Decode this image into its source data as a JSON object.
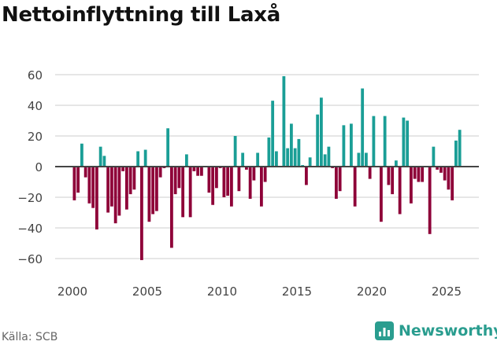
{
  "title": "Nettoinflyttning till Laxå",
  "source": "Källa: SCB",
  "brand": "Newsworthy",
  "colors": {
    "positive": "#1a9e96",
    "negative": "#8e0038",
    "grid": "#dddddd",
    "zero": "#444444",
    "brand": "#2a9d8f"
  },
  "chart_data": {
    "type": "bar",
    "title": "Nettoinflyttning till Laxå",
    "xlabel": "",
    "ylabel": "",
    "ylim": [
      -70,
      70
    ],
    "xlim": [
      1999,
      2026.6
    ],
    "yticks": [
      -60,
      -40,
      -20,
      0,
      20,
      40,
      60
    ],
    "ytick_labels": [
      "−60",
      "−40",
      "−20",
      "0",
      "20",
      "40",
      "60"
    ],
    "xticks": [
      2000,
      2005,
      2010,
      2015,
      2020,
      2025
    ],
    "xtick_labels": [
      "2000",
      "2005",
      "2010",
      "2015",
      "2020",
      "2025"
    ],
    "start_year": 2000,
    "frequency": "quarterly",
    "values": [
      -22,
      -17,
      15,
      -7,
      -24,
      -27,
      -41,
      13,
      7,
      -30,
      -26,
      -37,
      -32,
      -3,
      -28,
      -18,
      -15,
      10,
      -61,
      11,
      -36,
      -31,
      -29,
      -7,
      -1,
      25,
      -53,
      -18,
      -14,
      -33,
      8,
      -33,
      -3,
      -6,
      -6,
      0,
      -17,
      -25,
      -14,
      -1,
      -20,
      -19,
      -26,
      20,
      -16,
      9,
      -2,
      -21,
      -9,
      9,
      -26,
      -10,
      19,
      43,
      10,
      0,
      59,
      12,
      28,
      12,
      18,
      1,
      -12,
      6,
      0,
      34,
      45,
      8,
      13,
      -1,
      -21,
      -16,
      27,
      0,
      28,
      -26,
      9,
      51,
      9,
      -8,
      33,
      0,
      -36,
      33,
      -12,
      -18,
      4,
      -31,
      32,
      30,
      -24,
      -8,
      -10,
      -10,
      0,
      -44,
      13,
      -2,
      -4,
      -9,
      -15,
      -22,
      17,
      24
    ],
    "grid": true,
    "legend": "none"
  }
}
